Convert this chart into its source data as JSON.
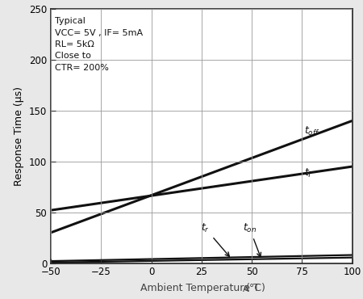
{
  "x_range": [
    -50,
    100
  ],
  "y_range": [
    0,
    250
  ],
  "x_ticks": [
    -50,
    -25,
    0,
    25,
    50,
    75,
    100
  ],
  "y_ticks": [
    0,
    50,
    100,
    150,
    200,
    250
  ],
  "xlabel": "Ambient Temperature T",
  "xlabel_sub": "A",
  "xlabel_unit": "(°C)",
  "ylabel": "Response Time (μs)",
  "annotation_text": "Typical\nVCC= 5V , IF= 5mA\nRL= 5kΩ\nClose to\nCTR= 200%",
  "lines": {
    "t_off": {
      "x": [
        -50,
        100
      ],
      "y": [
        30,
        140
      ],
      "lw": 2.2
    },
    "t_f": {
      "x": [
        -50,
        100
      ],
      "y": [
        52,
        95
      ],
      "lw": 2.2
    },
    "t_r": {
      "x": [
        -50,
        100
      ],
      "y": [
        2.0,
        8.0
      ],
      "lw": 1.6
    },
    "t_on": {
      "x": [
        -50,
        100
      ],
      "y": [
        0.5,
        5.5
      ],
      "lw": 1.6
    }
  },
  "bg_color": "#e8e8e8",
  "plot_bg_color": "#ffffff",
  "grid_color": "#999999",
  "line_color": "#111111",
  "tick_fontsize": 8.5,
  "label_fontsize": 9,
  "annot_fontsize": 8
}
